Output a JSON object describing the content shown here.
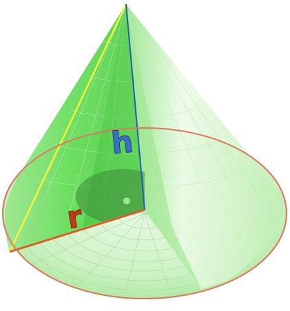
{
  "diagram": {
    "labels": {
      "height": "h",
      "radius": "r"
    },
    "colors": {
      "cone_fill": "#52d94c",
      "cone_light": "#d9f7d2",
      "base_rim": "#e0785f",
      "grid": "#9fd6a0",
      "slant_line": "#f6f63a",
      "height_line": "#1e5fb0",
      "radius_line": "#e05a2b",
      "label_h": "#3a6fc4",
      "label_r": "#c4391a",
      "right_angle": "#3e8a3a"
    }
  }
}
